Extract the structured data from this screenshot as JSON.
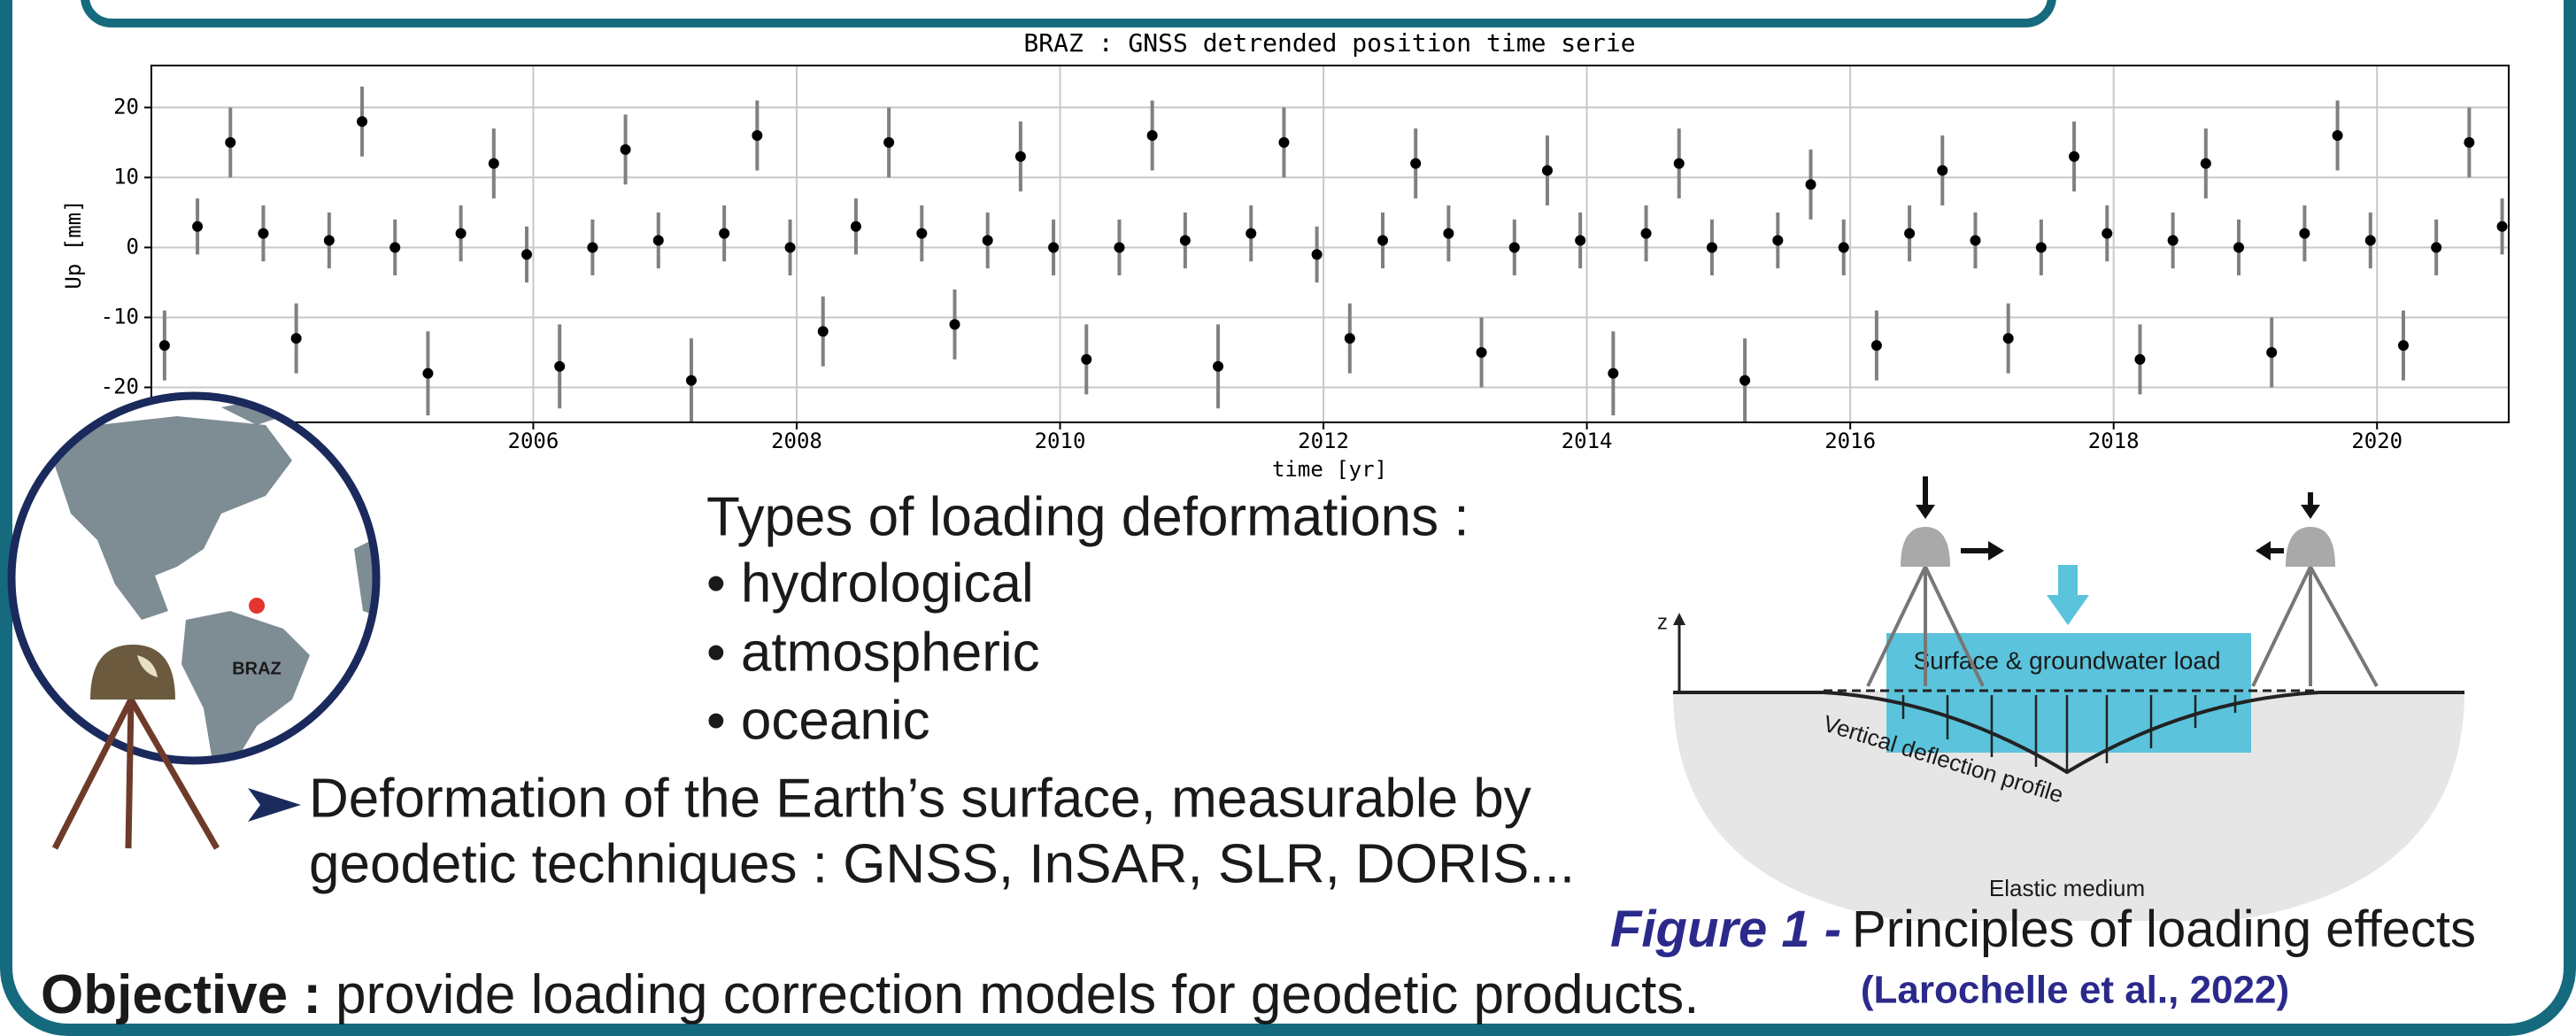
{
  "chart_data": {
    "type": "scatter",
    "title": "BRAZ : GNSS detrended position time serie",
    "x_label": "time [yr]",
    "y_label": "Up [mm]",
    "x": [
      2003.2,
      2003.45,
      2003.7,
      2003.95,
      2004.2,
      2004.45,
      2004.7,
      2004.95,
      2005.2,
      2005.45,
      2005.7,
      2005.95,
      2006.2,
      2006.45,
      2006.7,
      2006.95,
      2007.2,
      2007.45,
      2007.7,
      2007.95,
      2008.2,
      2008.45,
      2008.7,
      2008.95,
      2009.2,
      2009.45,
      2009.7,
      2009.95,
      2010.2,
      2010.45,
      2010.7,
      2010.95,
      2011.2,
      2011.45,
      2011.7,
      2011.95,
      2012.2,
      2012.45,
      2012.7,
      2012.95,
      2013.2,
      2013.45,
      2013.7,
      2013.95,
      2014.2,
      2014.45,
      2014.7,
      2014.95,
      2015.2,
      2015.45,
      2015.7,
      2015.95,
      2016.2,
      2016.45,
      2016.7,
      2016.95,
      2017.2,
      2017.45,
      2017.7,
      2017.95,
      2018.2,
      2018.45,
      2018.7,
      2018.95,
      2019.2,
      2019.45,
      2019.7,
      2019.95,
      2020.2,
      2020.45,
      2020.7,
      2020.95
    ],
    "values": [
      -14,
      3,
      15,
      2,
      -13,
      1,
      18,
      0,
      -18,
      2,
      12,
      -1,
      -17,
      0,
      14,
      1,
      -19,
      2,
      16,
      0,
      -12,
      3,
      15,
      2,
      -11,
      1,
      13,
      0,
      -16,
      0,
      16,
      1,
      -17,
      2,
      15,
      -1,
      -13,
      1,
      12,
      2,
      -15,
      0,
      11,
      1,
      -18,
      2,
      12,
      0,
      -19,
      1,
      9,
      0,
      -14,
      2,
      11,
      1,
      -13,
      0,
      13,
      2,
      -16,
      1,
      12,
      0,
      -15,
      2,
      16,
      1,
      -14,
      0,
      15,
      3
    ],
    "errors": [
      5,
      4,
      5,
      4,
      5,
      4,
      5,
      4,
      6,
      4,
      5,
      4,
      6,
      4,
      5,
      4,
      6,
      4,
      5,
      4,
      5,
      4,
      5,
      4,
      5,
      4,
      5,
      4,
      5,
      4,
      5,
      4,
      6,
      4,
      5,
      4,
      5,
      4,
      5,
      4,
      5,
      4,
      5,
      4,
      6,
      4,
      5,
      4,
      6,
      4,
      5,
      4,
      5,
      4,
      5,
      4,
      5,
      4,
      5,
      4,
      5,
      4,
      5,
      4,
      5,
      4,
      5,
      4,
      5,
      4,
      5,
      4
    ],
    "color": "#000000",
    "error_color": "#808080",
    "xlim": [
      2003.1,
      2021.0
    ],
    "ylim": [
      -25,
      26
    ],
    "xticks": [
      2006,
      2008,
      2010,
      2012,
      2014,
      2016,
      2018,
      2020
    ],
    "yticks": [
      -20,
      -10,
      0,
      10,
      20
    ],
    "grid": true
  },
  "globe": {
    "station_label": "BRAZ"
  },
  "loading_types": {
    "heading": "Types of loading deformations :",
    "items": [
      "• hydrological",
      "• atmospheric",
      "• oceanic"
    ]
  },
  "deformation": {
    "lines": [
      "Deformation of the Earth’s surface, measurable by",
      "geodetic techniques : GNSS, InSAR, SLR, DORIS..."
    ]
  },
  "objective": {
    "label": "Objective :",
    "text": "provide loading correction models for geodetic products."
  },
  "figure": {
    "axis_label": "z",
    "load_label": "Surface & groundwater load",
    "profile_label": "Vertical deflection profile",
    "medium_label": "Elastic medium",
    "caption_prefix": "Figure 1 -",
    "caption": "Principles of loading effects",
    "reference": "(Larochelle et al., 2022)"
  }
}
